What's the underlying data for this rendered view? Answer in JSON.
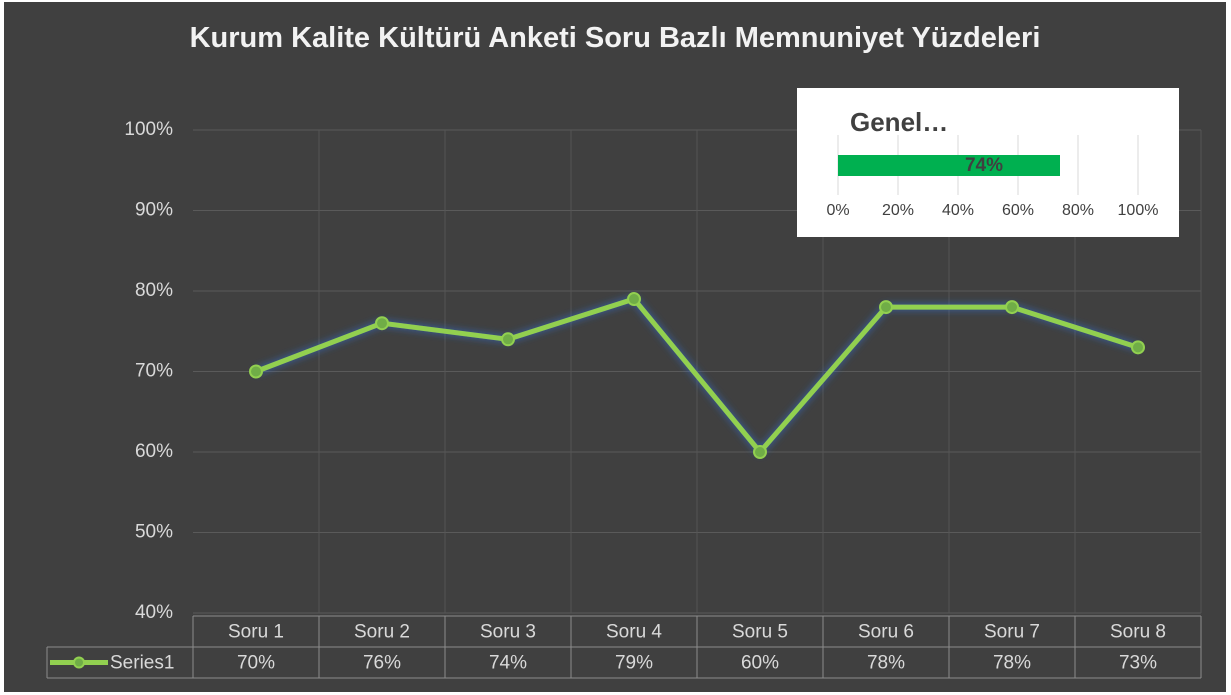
{
  "chart_data": [
    {
      "type": "line",
      "title": "Kurum Kalite Kültürü Anketi Soru Bazlı Memnuniyet Yüzdeleri",
      "categories": [
        "Soru 1",
        "Soru 2",
        "Soru 3",
        "Soru 4",
        "Soru 5",
        "Soru 6",
        "Soru 7",
        "Soru 8"
      ],
      "series": [
        {
          "name": "Series1",
          "color": "#92d050",
          "values": [
            70,
            76,
            74,
            79,
            60,
            78,
            78,
            73
          ],
          "value_labels": [
            "70%",
            "76%",
            "74%",
            "79%",
            "60%",
            "78%",
            "78%",
            "73%"
          ]
        }
      ],
      "ylim": [
        40,
        100
      ],
      "yticks": [
        {
          "value": 40,
          "label": "40%"
        },
        {
          "value": 50,
          "label": "50%"
        },
        {
          "value": 60,
          "label": "60%"
        },
        {
          "value": 70,
          "label": "70%"
        },
        {
          "value": 80,
          "label": "80%"
        },
        {
          "value": 90,
          "label": "90%"
        },
        {
          "value": 100,
          "label": "100%"
        }
      ],
      "grid": true,
      "data_table": true
    },
    {
      "type": "barh",
      "title": "Genel…",
      "categories": [
        null
      ],
      "values": [
        74
      ],
      "value_labels": [
        "74%"
      ],
      "color": "#00b050",
      "xlim": [
        0,
        100
      ],
      "xticks": [
        {
          "value": 0,
          "label": "0%"
        },
        {
          "value": 20,
          "label": "20%"
        },
        {
          "value": 40,
          "label": "40%"
        },
        {
          "value": 60,
          "label": "60%"
        },
        {
          "value": 80,
          "label": "80%"
        },
        {
          "value": 100,
          "label": "100%"
        }
      ],
      "grid": true
    }
  ]
}
